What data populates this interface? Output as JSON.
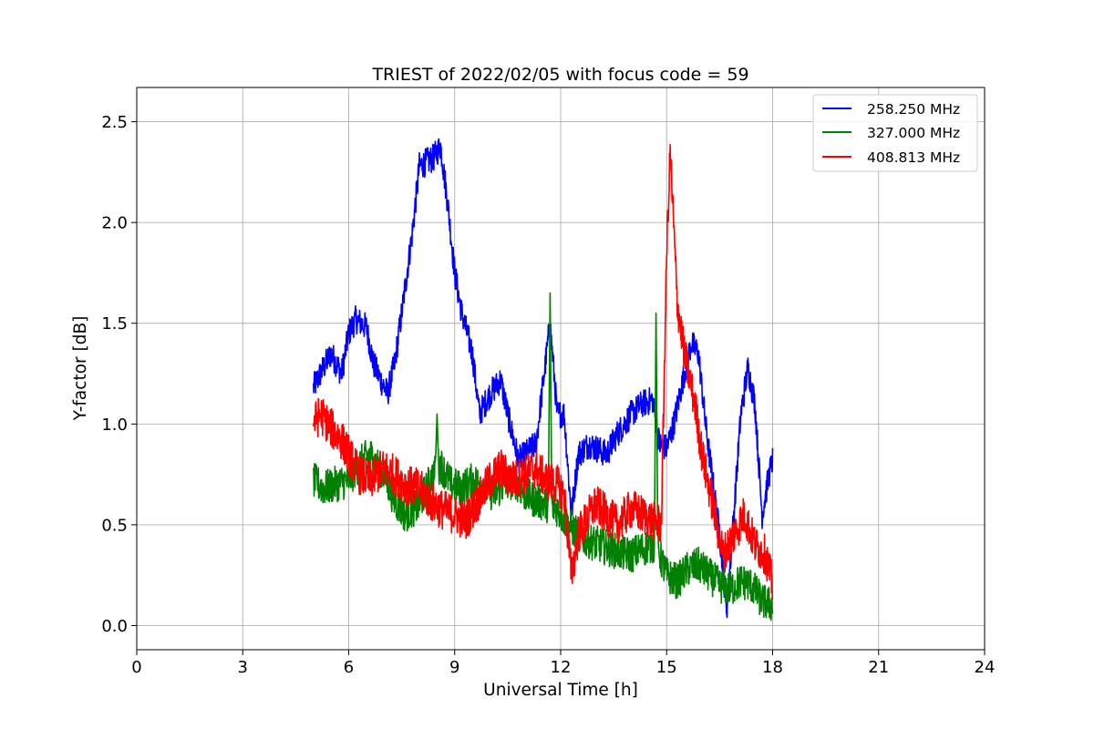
{
  "chart_data": {
    "type": "line",
    "title": "TRIEST of 2022/02/05 with focus code = 59",
    "xlabel": "Universal Time [h]",
    "ylabel": "Y-factor [dB]",
    "xlim": [
      0,
      24
    ],
    "ylim": [
      -0.12,
      2.67
    ],
    "xticks": [
      0,
      3,
      6,
      9,
      12,
      15,
      18,
      21,
      24
    ],
    "xtick_labels": [
      "0",
      "3",
      "6",
      "9",
      "12",
      "15",
      "18",
      "21",
      "24"
    ],
    "yticks": [
      0.0,
      0.5,
      1.0,
      1.5,
      2.0,
      2.5
    ],
    "ytick_labels": [
      "0.0",
      "0.5",
      "1.0",
      "1.5",
      "2.0",
      "2.5"
    ],
    "grid": true,
    "legend_position": "top-right",
    "series": [
      {
        "name": "258.250 MHz",
        "color": "#0000ff",
        "noise_amplitude": 0.07,
        "x": [
          5.0,
          5.2,
          5.5,
          5.8,
          6.0,
          6.2,
          6.5,
          6.7,
          6.9,
          7.1,
          7.3,
          7.5,
          7.8,
          8.0,
          8.2,
          8.4,
          8.6,
          8.8,
          9.0,
          9.2,
          9.5,
          9.7,
          10.0,
          10.3,
          10.5,
          10.8,
          11.0,
          11.3,
          11.5,
          11.7,
          11.9,
          12.1,
          12.3,
          12.5,
          12.8,
          13.0,
          13.3,
          13.6,
          14.0,
          14.3,
          14.6,
          14.8,
          15.0,
          15.2,
          15.5,
          15.7,
          15.9,
          16.1,
          16.3,
          16.5,
          16.7,
          16.9,
          17.1,
          17.3,
          17.5,
          17.7,
          17.9,
          18.0
        ],
        "y": [
          1.18,
          1.25,
          1.35,
          1.25,
          1.45,
          1.52,
          1.48,
          1.3,
          1.22,
          1.15,
          1.3,
          1.55,
          1.95,
          2.28,
          2.3,
          2.32,
          2.38,
          2.1,
          1.75,
          1.55,
          1.35,
          1.05,
          1.15,
          1.22,
          1.05,
          0.82,
          0.85,
          0.9,
          1.2,
          1.5,
          1.05,
          1.05,
          0.55,
          0.85,
          0.9,
          0.88,
          0.85,
          0.95,
          1.05,
          1.1,
          1.12,
          0.9,
          0.88,
          1.0,
          1.25,
          1.4,
          1.35,
          1.0,
          0.72,
          0.45,
          0.08,
          0.55,
          1.05,
          1.28,
          1.1,
          0.55,
          0.75,
          0.82
        ]
      },
      {
        "name": "327.000 MHz",
        "color": "#008000",
        "noise_amplitude": 0.09,
        "x": [
          5.0,
          5.3,
          5.6,
          6.0,
          6.3,
          6.6,
          7.0,
          7.3,
          7.6,
          8.0,
          8.3,
          8.6,
          8.9,
          9.2,
          9.5,
          9.8,
          10.1,
          10.4,
          10.7,
          11.0,
          11.3,
          11.6,
          11.9,
          12.2,
          12.5,
          12.8,
          13.1,
          13.4,
          13.7,
          14.0,
          14.3,
          14.6,
          14.8,
          15.0,
          15.3,
          15.6,
          15.9,
          16.2,
          16.5,
          16.8,
          17.1,
          17.4,
          17.7,
          18.0
        ],
        "y": [
          0.72,
          0.68,
          0.7,
          0.72,
          0.8,
          0.85,
          0.75,
          0.62,
          0.55,
          0.6,
          0.72,
          0.8,
          0.7,
          0.68,
          0.72,
          0.7,
          0.65,
          0.7,
          0.72,
          0.65,
          0.62,
          0.6,
          0.58,
          0.5,
          0.45,
          0.42,
          0.4,
          0.38,
          0.36,
          0.35,
          0.38,
          0.4,
          0.35,
          0.25,
          0.22,
          0.28,
          0.3,
          0.25,
          0.2,
          0.18,
          0.22,
          0.2,
          0.12,
          0.1
        ],
        "spikes": [
          {
            "x": 8.5,
            "y": 1.05
          },
          {
            "x": 11.7,
            "y": 1.65
          },
          {
            "x": 14.7,
            "y": 1.55
          }
        ]
      },
      {
        "name": "408.813 MHz",
        "color": "#ff0000",
        "noise_amplitude": 0.1,
        "x": [
          5.0,
          5.2,
          5.5,
          5.8,
          6.0,
          6.3,
          6.6,
          7.0,
          7.3,
          7.6,
          8.0,
          8.3,
          8.6,
          9.0,
          9.3,
          9.6,
          10.0,
          10.3,
          10.6,
          11.0,
          11.3,
          11.6,
          11.9,
          12.1,
          12.3,
          12.5,
          12.8,
          13.0,
          13.3,
          13.6,
          14.0,
          14.3,
          14.6,
          14.85,
          15.0,
          15.1,
          15.3,
          15.5,
          15.8,
          16.0,
          16.3,
          16.6,
          16.9,
          17.2,
          17.5,
          17.8,
          18.0
        ],
        "y": [
          1.0,
          1.05,
          0.98,
          0.92,
          0.85,
          0.75,
          0.72,
          0.78,
          0.75,
          0.7,
          0.68,
          0.62,
          0.58,
          0.55,
          0.52,
          0.6,
          0.72,
          0.78,
          0.72,
          0.75,
          0.78,
          0.72,
          0.7,
          0.65,
          0.25,
          0.45,
          0.55,
          0.6,
          0.55,
          0.5,
          0.58,
          0.55,
          0.52,
          0.5,
          1.85,
          2.35,
          1.6,
          1.35,
          1.1,
          0.85,
          0.6,
          0.35,
          0.45,
          0.55,
          0.4,
          0.35,
          0.2
        ]
      }
    ]
  }
}
